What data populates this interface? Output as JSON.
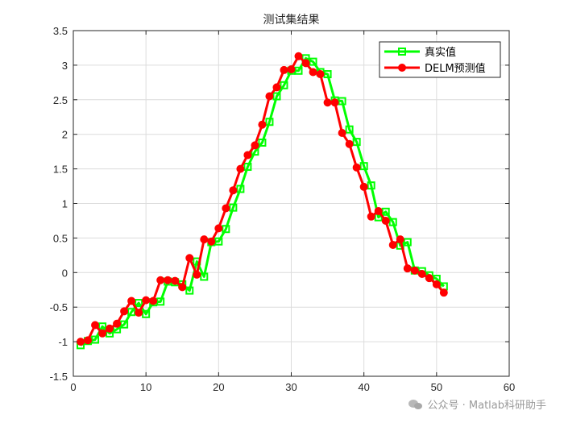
{
  "chart_data": {
    "type": "line",
    "title": "测试集结果",
    "xlabel": "",
    "ylabel": "",
    "xlim": [
      0,
      60
    ],
    "ylim": [
      -1.5,
      3.5
    ],
    "xticks": [
      0,
      10,
      20,
      30,
      40,
      50,
      60
    ],
    "yticks": [
      -1.5,
      -1,
      -0.5,
      0,
      0.5,
      1,
      1.5,
      2,
      2.5,
      3,
      3.5
    ],
    "xtick_labels": [
      "0",
      "10",
      "20",
      "30",
      "40",
      "50",
      "60"
    ],
    "ytick_labels": [
      "-1.5",
      "-1",
      "-0.5",
      "0",
      "0.5",
      "1",
      "1.5",
      "2",
      "2.5",
      "3",
      "3.5"
    ],
    "grid": true,
    "legend_position": "top-right",
    "x": [
      1,
      2,
      3,
      4,
      5,
      6,
      7,
      8,
      9,
      10,
      11,
      12,
      13,
      14,
      15,
      16,
      17,
      18,
      19,
      20,
      21,
      22,
      23,
      24,
      25,
      26,
      27,
      28,
      29,
      30,
      31,
      32,
      33,
      34,
      35,
      36,
      37,
      38,
      39,
      40,
      41,
      42,
      43,
      44,
      45,
      46,
      47,
      48,
      49,
      50,
      51
    ],
    "series": [
      {
        "name": "真实值",
        "color": "#00ff00",
        "marker": "square",
        "values": [
          -1.05,
          -0.99,
          -0.97,
          -0.78,
          -0.88,
          -0.82,
          -0.75,
          -0.57,
          -0.44,
          -0.6,
          -0.43,
          -0.42,
          -0.13,
          -0.14,
          -0.17,
          -0.26,
          0.16,
          -0.06,
          0.44,
          0.45,
          0.63,
          0.94,
          1.21,
          1.53,
          1.75,
          1.88,
          2.18,
          2.55,
          2.71,
          2.92,
          2.92,
          3.1,
          3.05,
          2.9,
          2.87,
          2.49,
          2.48,
          2.07,
          1.89,
          1.54,
          1.26,
          0.8,
          0.88,
          0.73,
          0.39,
          0.44,
          0.03,
          0.02,
          -0.04,
          -0.09,
          -0.2
        ]
      },
      {
        "name": "DELM预测值",
        "color": "#ff0000",
        "marker": "circle",
        "values": [
          -1.0,
          -0.98,
          -0.76,
          -0.88,
          -0.81,
          -0.74,
          -0.56,
          -0.41,
          -0.58,
          -0.4,
          -0.41,
          -0.11,
          -0.11,
          -0.12,
          -0.21,
          0.21,
          -0.03,
          0.48,
          0.45,
          0.64,
          0.93,
          1.19,
          1.5,
          1.7,
          1.84,
          2.14,
          2.55,
          2.68,
          2.93,
          2.94,
          3.13,
          3.03,
          2.9,
          2.87,
          2.46,
          2.46,
          2.02,
          1.86,
          1.52,
          1.24,
          0.81,
          0.89,
          0.75,
          0.4,
          0.48,
          0.06,
          0.03,
          -0.02,
          -0.08,
          -0.17,
          -0.29
        ]
      }
    ]
  },
  "watermark": {
    "text": "公众号 · Matlab科研助手",
    "icon": "wechat-icon"
  }
}
